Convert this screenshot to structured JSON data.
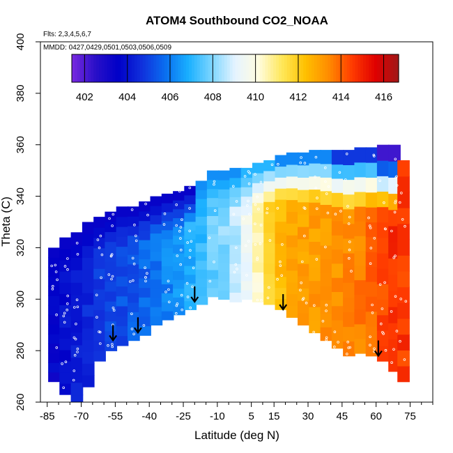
{
  "chart_data": {
    "type": "heatmap",
    "title": "ATOM4 Southbound CO2_NOAA",
    "xlabel": "Latitude (deg N)",
    "ylabel": "Theta (C)",
    "annotation_flights": "Flts: 2,3,4,5,6,7",
    "annotation_dates": "MMDD: 0427,0429,0501,0503,0506,0509",
    "xlim": [
      -88,
      85
    ],
    "ylim": [
      260,
      400
    ],
    "x_ticks": [
      -85,
      -70,
      -55,
      -40,
      -25,
      -10,
      5,
      15,
      30,
      45,
      60,
      75
    ],
    "x_minor_ticks": [
      -80,
      -75,
      -65,
      -60,
      -50,
      -45,
      -35,
      -30,
      -20,
      -15,
      -5,
      0,
      10,
      20,
      25,
      35,
      40,
      50,
      55,
      65,
      70,
      80,
      85
    ],
    "y_ticks": [
      260,
      280,
      300,
      320,
      340,
      360,
      380,
      400
    ],
    "colorbar": {
      "min": 401.4,
      "max": 416.7,
      "ticks": [
        402,
        404,
        406,
        408,
        410,
        412,
        414,
        416
      ],
      "colors": [
        "#7a2ae0",
        "#2a10c8",
        "#0000c8",
        "#1030dc",
        "#0a6ef0",
        "#1ab0ff",
        "#7dd6ff",
        "#e6f4ff",
        "#fffce0",
        "#ffe85a",
        "#ffc000",
        "#ff8c00",
        "#ff3c00",
        "#e00000",
        "#a01818"
      ]
    },
    "field": [
      {
        "x": -82,
        "y_low": 268,
        "y_high": 320,
        "value": 403.6
      },
      {
        "x": -77,
        "y_low": 263,
        "y_high": 324,
        "value": 403.9
      },
      {
        "x": -72,
        "y_low": 258,
        "y_high": 326,
        "value": 404.2
      },
      {
        "x": -67,
        "y_low": 266,
        "y_high": 330,
        "value": 404.5
      },
      {
        "x": -62,
        "y_low": 276,
        "y_high": 332,
        "value": 404.8
      },
      {
        "x": -57,
        "y_low": 280,
        "y_high": 334,
        "value": 405.0
      },
      {
        "x": -52,
        "y_low": 282,
        "y_high": 336,
        "value": 405.2
      },
      {
        "x": -47,
        "y_low": 284,
        "y_high": 336,
        "value": 405.4
      },
      {
        "x": -42,
        "y_low": 286,
        "y_high": 338,
        "value": 405.6
      },
      {
        "x": -37,
        "y_low": 290,
        "y_high": 340,
        "value": 405.9
      },
      {
        "x": -32,
        "y_low": 292,
        "y_high": 341,
        "value": 406.1
      },
      {
        "x": -27,
        "y_low": 294,
        "y_high": 342,
        "value": 406.4
      },
      {
        "x": -22,
        "y_low": 296,
        "y_high": 344,
        "value": 406.8
      },
      {
        "x": -17,
        "y_low": 298,
        "y_high": 346,
        "value": 407.2
      },
      {
        "x": -12,
        "y_low": 301,
        "y_high": 350,
        "value": 407.7
      },
      {
        "x": -7,
        "y_low": 300,
        "y_high": 350,
        "value": 408.1
      },
      {
        "x": -2,
        "y_low": 299,
        "y_high": 351,
        "value": 408.6
      },
      {
        "x": 3,
        "y_low": 300,
        "y_high": 351,
        "value": 409.4
      },
      {
        "x": 8,
        "y_low": 299,
        "y_high": 353,
        "value": 410.4
      },
      {
        "x": 13,
        "y_low": 298,
        "y_high": 354,
        "value": 411.6
      },
      {
        "x": 18,
        "y_low": 296,
        "y_high": 356,
        "value": 412.4
      },
      {
        "x": 23,
        "y_low": 293,
        "y_high": 357,
        "value": 412.8
      },
      {
        "x": 28,
        "y_low": 290,
        "y_high": 357,
        "value": 413.0
      },
      {
        "x": 33,
        "y_low": 287,
        "y_high": 358,
        "value": 413.1
      },
      {
        "x": 38,
        "y_low": 284,
        "y_high": 358,
        "value": 413.2
      },
      {
        "x": 43,
        "y_low": 281,
        "y_high": 358,
        "value": 413.3
      },
      {
        "x": 48,
        "y_low": 278,
        "y_high": 358,
        "value": 413.4
      },
      {
        "x": 53,
        "y_low": 279,
        "y_high": 359,
        "value": 413.6
      },
      {
        "x": 58,
        "y_low": 278,
        "y_high": 359,
        "value": 414.0
      },
      {
        "x": 63,
        "y_low": 276,
        "y_high": 360,
        "value": 414.4
      },
      {
        "x": 68,
        "y_low": 272,
        "y_high": 360,
        "value": 414.8
      },
      {
        "x": 72,
        "y_low": 268,
        "y_high": 354,
        "value": 414.6
      }
    ],
    "upper_band_values": [
      {
        "x_from": -88,
        "x_to": -20,
        "value": 403.4
      },
      {
        "x_from": -20,
        "x_to": 0,
        "value": 406.3
      },
      {
        "x_from": 0,
        "x_to": 18,
        "value": 407.0
      },
      {
        "x_from": 18,
        "x_to": 40,
        "value": 406.2
      },
      {
        "x_from": 40,
        "x_to": 60,
        "value": 404.8
      },
      {
        "x_from": 60,
        "x_to": 72,
        "value": 402.2
      }
    ],
    "tropopause_arrows": [
      {
        "x": -56,
        "y": 284
      },
      {
        "x": -45,
        "y": 287
      },
      {
        "x": -20,
        "y": 299
      },
      {
        "x": 19,
        "y": 296
      },
      {
        "x": 61,
        "y": 278
      }
    ]
  }
}
